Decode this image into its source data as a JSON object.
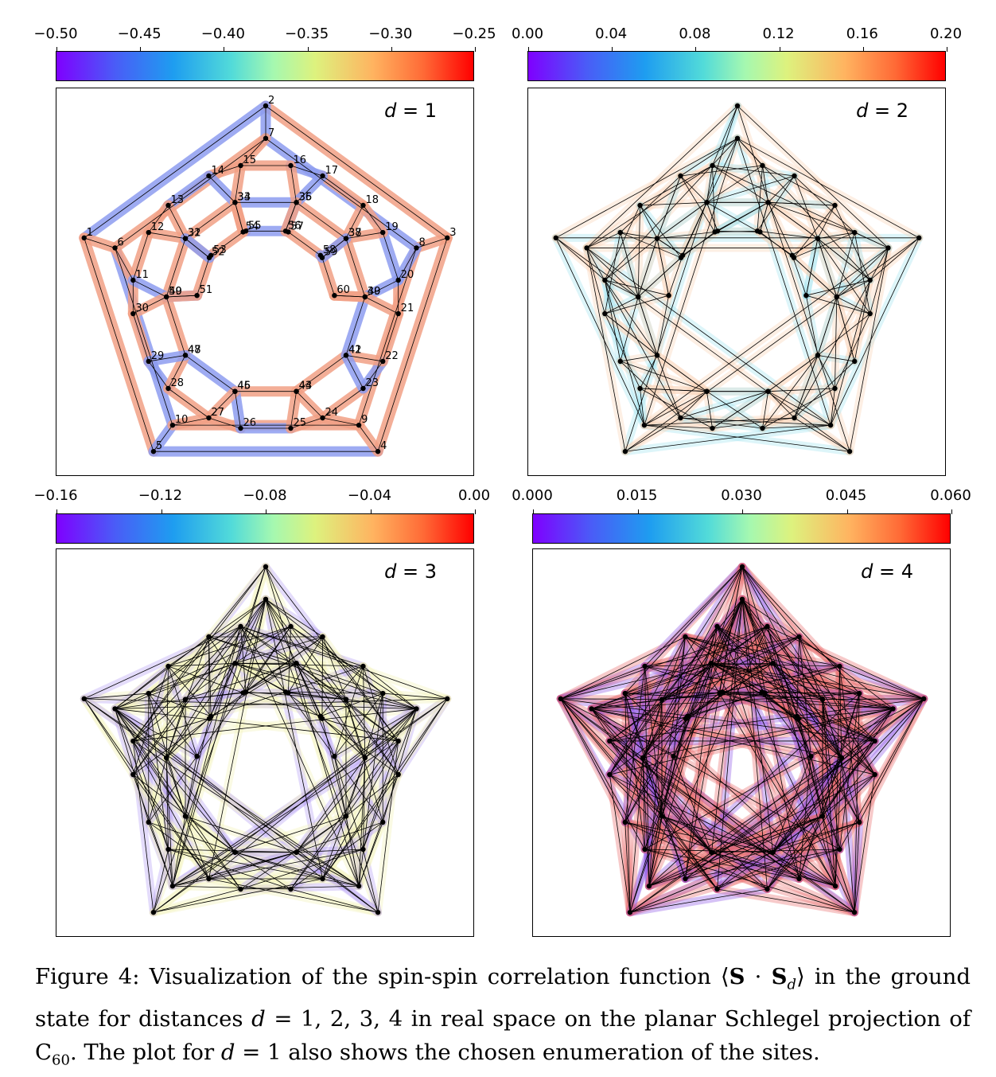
{
  "panels": [
    {
      "id": "d1",
      "d_label": "1",
      "ticks": [
        "−0.50",
        "−0.45",
        "−0.40",
        "−0.35",
        "−0.30",
        "−0.25"
      ]
    },
    {
      "id": "d2",
      "d_label": "2",
      "ticks": [
        "0.00",
        "0.04",
        "0.08",
        "0.12",
        "0.16",
        "0.20"
      ]
    },
    {
      "id": "d3",
      "d_label": "3",
      "ticks": [
        "−0.16",
        "−0.12",
        "−0.08",
        "−0.04",
        "0.00"
      ]
    },
    {
      "id": "d4",
      "d_label": "4",
      "ticks": [
        "0.000",
        "0.015",
        "0.030",
        "0.045",
        "0.060"
      ]
    }
  ],
  "colors": {
    "pos_bond": "#f2a186",
    "neg_bond": "#8e9df0",
    "d2_fill_a": "#9fe3f0",
    "d2_fill_b": "#fbd2b4",
    "d3_fill_a": "#b39cf5",
    "d3_fill_b": "#f3f2b5",
    "d4_fill_a": "#8d52e6",
    "d4_fill_b": "#e96b6b",
    "line": "#000000"
  },
  "site_labels": [
    "1",
    "2",
    "3",
    "4",
    "5",
    "6",
    "7",
    "8",
    "9",
    "10",
    "11",
    "12",
    "13",
    "14",
    "15",
    "16",
    "17",
    "18",
    "19",
    "20",
    "21",
    "22",
    "23",
    "24",
    "25",
    "26",
    "27",
    "28",
    "29",
    "30",
    "31",
    "32",
    "33",
    "34",
    "35",
    "36",
    "37",
    "38",
    "39",
    "40",
    "41",
    "42",
    "43",
    "44",
    "45",
    "46",
    "47",
    "48",
    "49",
    "50",
    "51",
    "52",
    "53",
    "54",
    "55",
    "56",
    "57",
    "58",
    "59",
    "60"
  ],
  "caption": {
    "fig": "Figure 4:",
    "text1": " Visualization of the spin-spin correlation function ",
    "bra": "⟨",
    "S": "S",
    "dot": " · ",
    "Sd": "S",
    "sub_d": "d",
    "ket": "⟩",
    "text2": " in the ground state for distances ",
    "d": "d",
    "eq": " = 1, 2, 3, 4",
    "text3": " in real space on the planar Schlegel projection of C",
    "c_sub": "60",
    "text4": ". The plot for ",
    "d_again": "d",
    "eq2": " = 1",
    "text5": " also shows the chosen enumeration of the sites."
  }
}
